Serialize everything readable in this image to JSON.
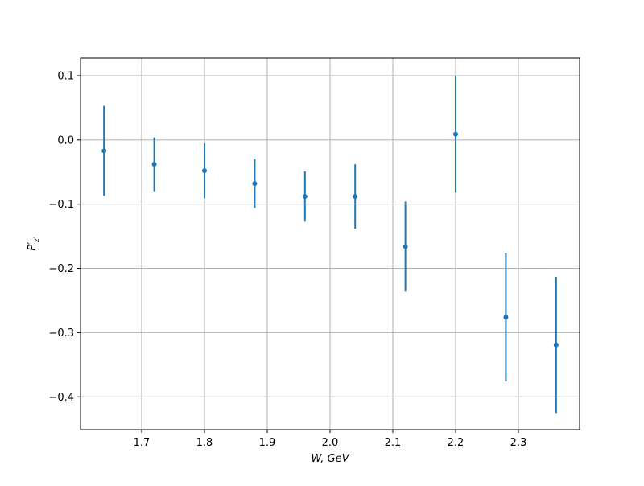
{
  "chart_data": {
    "type": "errorbar",
    "xlabel": "W, GeV",
    "ylabel": {
      "main": "P′",
      "sub": "z′"
    },
    "x": [
      1.64,
      1.72,
      1.8,
      1.88,
      1.96,
      2.04,
      2.12,
      2.2,
      2.28,
      2.36
    ],
    "series": [
      {
        "color": "#1f77b4",
        "values": [
          -0.017,
          -0.038,
          -0.048,
          -0.068,
          -0.088,
          -0.088,
          -0.166,
          0.009,
          -0.276,
          -0.319
        ],
        "errors": [
          0.07,
          0.042,
          0.043,
          0.038,
          0.039,
          0.05,
          0.07,
          0.091,
          0.1,
          0.106
        ]
      }
    ],
    "xlim": [
      1.6026,
      2.3974
    ],
    "ylim": [
      -0.451,
      0.1275
    ],
    "xticks": [
      1.7,
      1.8,
      1.9,
      {
        "value": 2.0,
        "label": "2.0"
      },
      2.1,
      2.2,
      2.3
    ],
    "yticks": [
      {
        "value": -0.4,
        "label": "−0.4"
      },
      {
        "value": -0.3,
        "label": "−0.3"
      },
      {
        "value": -0.2,
        "label": "−0.2"
      },
      {
        "value": -0.1,
        "label": "−0.1"
      },
      {
        "value": 0,
        "label": "0.0"
      },
      0.1
    ],
    "grid": true
  }
}
